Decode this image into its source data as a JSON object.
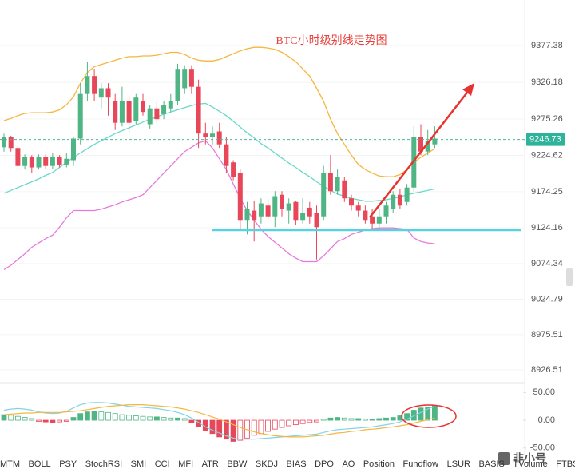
{
  "chart_data": [
    {
      "type": "candlestick",
      "title": "BTC小时级别线走势图",
      "open": [
        9236,
        9250,
        9235,
        9210,
        9222,
        9208,
        9222,
        9210,
        9222,
        9212,
        9218,
        9248,
        9310,
        9335,
        9305,
        9318,
        9300,
        9270,
        9300,
        9272,
        9300,
        9268,
        9290,
        9282,
        9290,
        9300,
        9318,
        9345,
        9320,
        9255,
        9250,
        9258,
        9240,
        9215,
        9200,
        9135,
        9148,
        9140,
        9155,
        9140,
        9170,
        9148,
        9160,
        9135,
        9152,
        9145,
        9140,
        9200,
        9175,
        9190,
        9165,
        9155,
        9148,
        9140,
        9130,
        9140,
        9150,
        9170,
        9160,
        9180,
        9250,
        9230,
        9240
      ],
      "close": [
        9250,
        9235,
        9210,
        9222,
        9208,
        9223,
        9210,
        9222,
        9212,
        9220,
        9248,
        9310,
        9335,
        9310,
        9318,
        9305,
        9270,
        9300,
        9270,
        9305,
        9285,
        9290,
        9275,
        9295,
        9300,
        9345,
        9345,
        9320,
        9255,
        9250,
        9255,
        9240,
        9210,
        9195,
        9135,
        9150,
        9135,
        9158,
        9140,
        9168,
        9150,
        9158,
        9135,
        9145,
        9140,
        9125,
        9200,
        9175,
        9195,
        9165,
        9155,
        9148,
        9135,
        9130,
        9140,
        9155,
        9170,
        9155,
        9180,
        9250,
        9230,
        9245,
        9248
      ],
      "high": [
        9255,
        9252,
        9238,
        9226,
        9225,
        9226,
        9226,
        9228,
        9225,
        9228,
        9250,
        9325,
        9355,
        9345,
        9325,
        9325,
        9310,
        9320,
        9308,
        9310,
        9310,
        9295,
        9300,
        9300,
        9310,
        9352,
        9350,
        9350,
        9330,
        9270,
        9265,
        9270,
        9250,
        9218,
        9205,
        9160,
        9162,
        9165,
        9165,
        9175,
        9175,
        9165,
        9162,
        9165,
        9160,
        9155,
        9210,
        9225,
        9205,
        9195,
        9170,
        9160,
        9155,
        9150,
        9150,
        9160,
        9175,
        9178,
        9185,
        9265,
        9268,
        9260,
        9265
      ],
      "low": [
        9230,
        9230,
        9205,
        9205,
        9200,
        9205,
        9205,
        9206,
        9208,
        9208,
        9210,
        9240,
        9300,
        9300,
        9290,
        9280,
        9260,
        9265,
        9255,
        9268,
        9280,
        9262,
        9270,
        9275,
        9285,
        9295,
        9310,
        9310,
        9235,
        9240,
        9240,
        9235,
        9200,
        9190,
        9120,
        9115,
        9105,
        9130,
        9135,
        9125,
        9140,
        9130,
        9128,
        9130,
        9130,
        9080,
        9135,
        9170,
        9170,
        9160,
        9148,
        9140,
        9130,
        9120,
        9125,
        9130,
        9145,
        9150,
        9155,
        9175,
        9225,
        9225,
        9235
      ],
      "up_color": "#4fb584",
      "down_color": "#e8475a",
      "bands": [
        {
          "color": "#f5b63c",
          "values": [
            9273,
            9276,
            9280,
            9283,
            9284,
            9284,
            9284,
            9285,
            9288,
            9295,
            9306,
            9325,
            9340,
            9348,
            9351,
            9354,
            9357,
            9360,
            9362,
            9362,
            9363,
            9363,
            9364,
            9366,
            9368,
            9368,
            9365,
            9360,
            9357,
            9356,
            9356,
            9358,
            9362,
            9366,
            9370,
            9373,
            9375,
            9375,
            9374,
            9372,
            9368,
            9362,
            9355,
            9345,
            9335,
            9318,
            9300,
            9275,
            9255,
            9240,
            9225,
            9212,
            9205,
            9200,
            9196,
            9195,
            9195,
            9198,
            9205,
            9215,
            9222,
            9228,
            9234
          ]
        },
        {
          "color": "#6ad8c8",
          "values": [
            9172,
            9176,
            9180,
            9184,
            9188,
            9192,
            9197,
            9201,
            9208,
            9215,
            9222,
            9228,
            9234,
            9240,
            9245,
            9250,
            9255,
            9259,
            9263,
            9267,
            9271,
            9275,
            9278,
            9282,
            9285,
            9288,
            9291,
            9294,
            9296,
            9297,
            9292,
            9286,
            9280,
            9272,
            9264,
            9256,
            9249,
            9241,
            9235,
            9228,
            9221,
            9214,
            9208,
            9201,
            9195,
            9188,
            9182,
            9176,
            9171,
            9168,
            9165,
            9163,
            9161,
            9161,
            9162,
            9163,
            9165,
            9167,
            9170,
            9172,
            9174,
            9176,
            9178
          ]
        },
        {
          "color": "#e57bd9",
          "values": [
            9066,
            9072,
            9080,
            9088,
            9097,
            9103,
            9109,
            9114,
            9125,
            9138,
            9148,
            9148,
            9148,
            9148,
            9150,
            9153,
            9156,
            9160,
            9163,
            9166,
            9170,
            9180,
            9190,
            9200,
            9210,
            9220,
            9230,
            9236,
            9242,
            9245,
            9235,
            9220,
            9205,
            9185,
            9165,
            9148,
            9135,
            9122,
            9112,
            9104,
            9096,
            9088,
            9082,
            9077,
            9077,
            9077,
            9085,
            9095,
            9105,
            9109,
            9115,
            9118,
            9121,
            9123,
            9124,
            9124,
            9124,
            9123,
            9122,
            9110,
            9105,
            9103,
            9102
          ]
        }
      ],
      "last_price": 9246.73,
      "ylim": [
        8907.6,
        9440.7
      ],
      "yticks": [
        9377.38,
        9326.18,
        9275.26,
        9224.62,
        9174.25,
        9124.16,
        9074.34,
        9024.79,
        8975.51,
        8926.51
      ],
      "grid": true
    },
    {
      "type": "macd",
      "histogram": [
        10,
        9,
        7,
        5,
        3,
        -2,
        -3,
        -4,
        -3,
        -2,
        5,
        12,
        15,
        16,
        15,
        14,
        12,
        10,
        9,
        8,
        7,
        6,
        6,
        5,
        4,
        4,
        3,
        -5,
        -12,
        -18,
        -24,
        -30,
        -34,
        -38,
        -36,
        -32,
        -27,
        -24,
        -20,
        -16,
        -13,
        -10,
        -8,
        -6,
        -4,
        -3,
        2,
        4,
        5,
        4,
        3,
        3,
        2,
        2,
        3,
        4,
        5,
        8,
        12,
        18,
        22,
        24,
        26
      ],
      "lines": [
        {
          "color": "#7fd3ea",
          "values": [
            18,
            20,
            21,
            20,
            18,
            15,
            13,
            12,
            13,
            16,
            22,
            28,
            31,
            32,
            32,
            31,
            29,
            27,
            25,
            24,
            23,
            22,
            21,
            19,
            17,
            14,
            10,
            4,
            -4,
            -12,
            -18,
            -23,
            -28,
            -32,
            -34,
            -34,
            -34,
            -33,
            -32,
            -31,
            -30,
            -29,
            -28,
            -27,
            -26,
            -25,
            -22,
            -19,
            -17,
            -16,
            -15,
            -14,
            -13,
            -12,
            -10,
            -8,
            -6,
            -3,
            2,
            8,
            14,
            20,
            25
          ]
        },
        {
          "color": "#f5b63c",
          "values": [
            10,
            11,
            12,
            13,
            13,
            14,
            14,
            14,
            14,
            15,
            16,
            17,
            19,
            21,
            23,
            25,
            26,
            27,
            28,
            28,
            28,
            27,
            26,
            25,
            24,
            22,
            20,
            17,
            14,
            10,
            6,
            2,
            -3,
            -8,
            -13,
            -17,
            -21,
            -24,
            -26,
            -28,
            -29,
            -30,
            -30,
            -30,
            -29,
            -28,
            -27,
            -25,
            -23,
            -22,
            -20,
            -19,
            -17,
            -16,
            -15,
            -13,
            -12,
            -10,
            -8,
            -5,
            -2,
            1,
            4
          ]
        }
      ],
      "up_color": "#4fb584",
      "down_color": "#e8475a",
      "ylim": [
        -63.2,
        66.2
      ],
      "yticks": [
        {
          "value": 50,
          "label": "50.00"
        },
        {
          "value": 0,
          "label": "0.00"
        },
        {
          "value": -50,
          "label": "-50.00"
        }
      ]
    }
  ],
  "tabs": [
    "MTM",
    "BOLL",
    "PSY",
    "StochRSI",
    "SMI",
    "CCI",
    "MFI",
    "ATR",
    "BBW",
    "SKDJ",
    "BIAS",
    "DPO",
    "AO",
    "Position",
    "Fundflow",
    "LSUR",
    "BASIS",
    "TVolume",
    "FTBS"
  ],
  "watermark": "非小号"
}
